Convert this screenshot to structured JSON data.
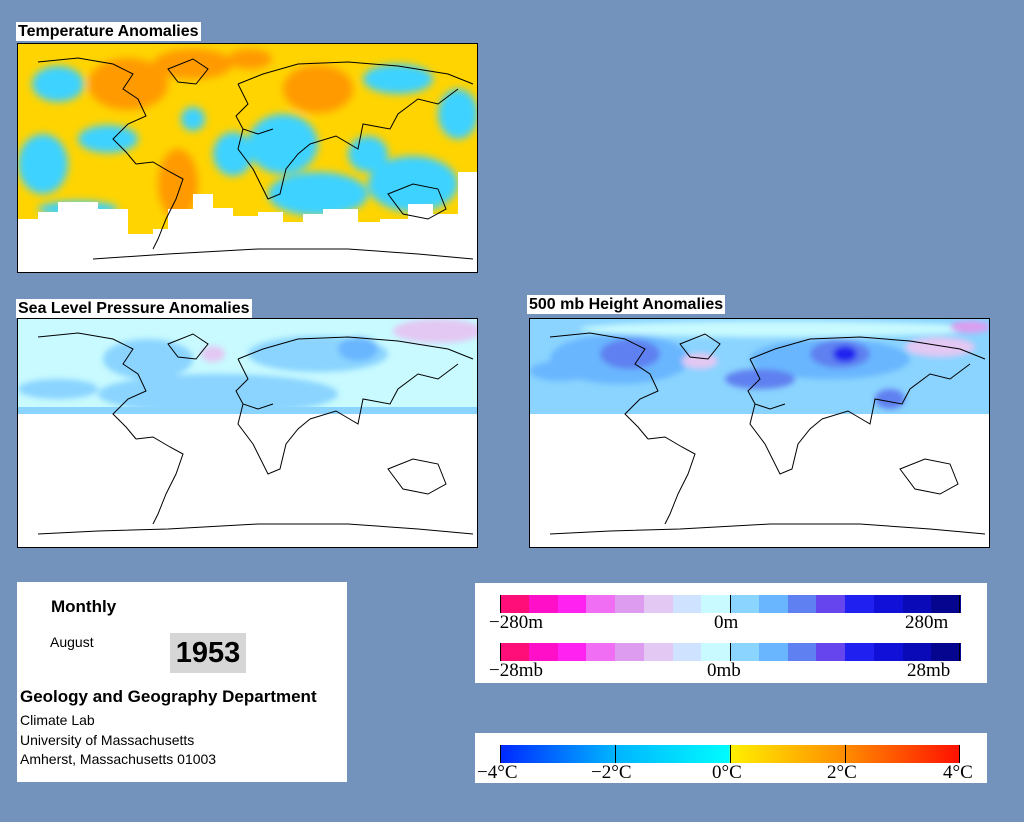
{
  "maps": {
    "temperature": {
      "title": "Temperature Anomalies"
    },
    "slp": {
      "title": "Sea Level Pressure Anomalies"
    },
    "height500": {
      "title": "500 mb Height Anomalies"
    }
  },
  "info": {
    "period": "Monthly",
    "month": "August",
    "year": "1953",
    "department": "Geology and Geography Department",
    "lab": "Climate Lab",
    "university": "University of Massachusetts",
    "address": "Amherst, Massachusetts 01003"
  },
  "legends": {
    "height": {
      "colors": [
        "#ff0e7a",
        "#ff10c8",
        "#ff22f0",
        "#ef6ef3",
        "#dd9cef",
        "#e3c8f3",
        "#cfe2ff",
        "#c8faff",
        "#8ad4ff",
        "#69b6ff",
        "#5e80f0",
        "#6644ee",
        "#2020f0",
        "#1010d8",
        "#0a0ab8",
        "#050590"
      ],
      "labels": [
        "−280m",
        "0m",
        "280m"
      ]
    },
    "pressure": {
      "colors": [
        "#ff0e7a",
        "#ff10c8",
        "#ff22f0",
        "#ef6ef3",
        "#dd9cef",
        "#e3c8f3",
        "#cfe2ff",
        "#c8faff",
        "#8ad4ff",
        "#69b6ff",
        "#5e80f0",
        "#6644ee",
        "#2020f0",
        "#1010d8",
        "#0a0ab8",
        "#050590"
      ],
      "labels": [
        "−28mb",
        "0mb",
        "28mb"
      ]
    },
    "temperature": {
      "colors": [
        "#0028ff",
        "#00b4ff",
        "#00fcff",
        "#fff000",
        "#ff8c00",
        "#ff1000"
      ],
      "labels": [
        "−4°C",
        "−2°C",
        "0°C",
        "2°C",
        "4°C"
      ]
    }
  }
}
